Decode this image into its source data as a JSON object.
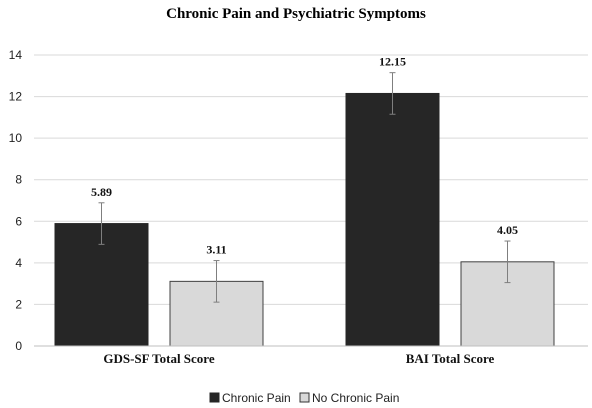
{
  "chart_data": {
    "type": "bar",
    "title": "Chronic Pain and Psychiatric Symptoms",
    "categories": [
      "GDS-SF Total Score",
      "BAI Total Score"
    ],
    "series": [
      {
        "name": "Chronic Pain",
        "values": [
          5.89,
          12.15
        ],
        "errors": [
          1.0,
          1.0
        ],
        "labels": [
          "5.89",
          "12.15"
        ],
        "color": "#262626"
      },
      {
        "name": "No Chronic Pain",
        "values": [
          3.11,
          4.05
        ],
        "errors": [
          1.0,
          1.0
        ],
        "labels": [
          "3.11",
          "4.05"
        ],
        "color": "#d9d9d9"
      }
    ],
    "yticks": [
      "0",
      "2",
      "4",
      "6",
      "8",
      "10",
      "12",
      "14"
    ],
    "ylim": [
      0,
      14
    ],
    "grid": true,
    "legend_position": "bottom"
  }
}
